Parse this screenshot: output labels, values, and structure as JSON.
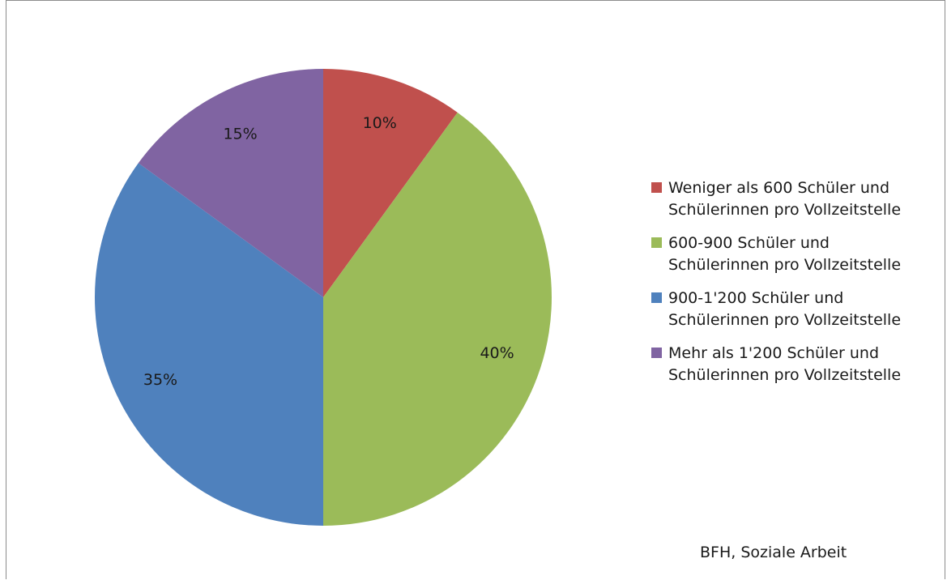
{
  "chart_data": {
    "type": "pie",
    "categories": [
      "Weniger als 600 Schüler und\nSchülerinnen pro Vollzeitstelle",
      "600-900 Schüler und\nSchülerinnen pro Vollzeitstelle",
      "900-1'200 Schüler und\nSchülerinnen pro Vollzeitstelle",
      "Mehr als 1'200 Schüler und\nSchülerinnen pro Vollzeitstelle"
    ],
    "values": [
      10,
      40,
      35,
      15
    ],
    "data_labels": [
      "10%",
      "40%",
      "35%",
      "15%"
    ],
    "colors": [
      "#c0504d",
      "#9bbb59",
      "#4f81bd",
      "#8064a2"
    ],
    "title": "",
    "legend_position": "right"
  },
  "source_note": "BFH, Soziale Arbeit"
}
